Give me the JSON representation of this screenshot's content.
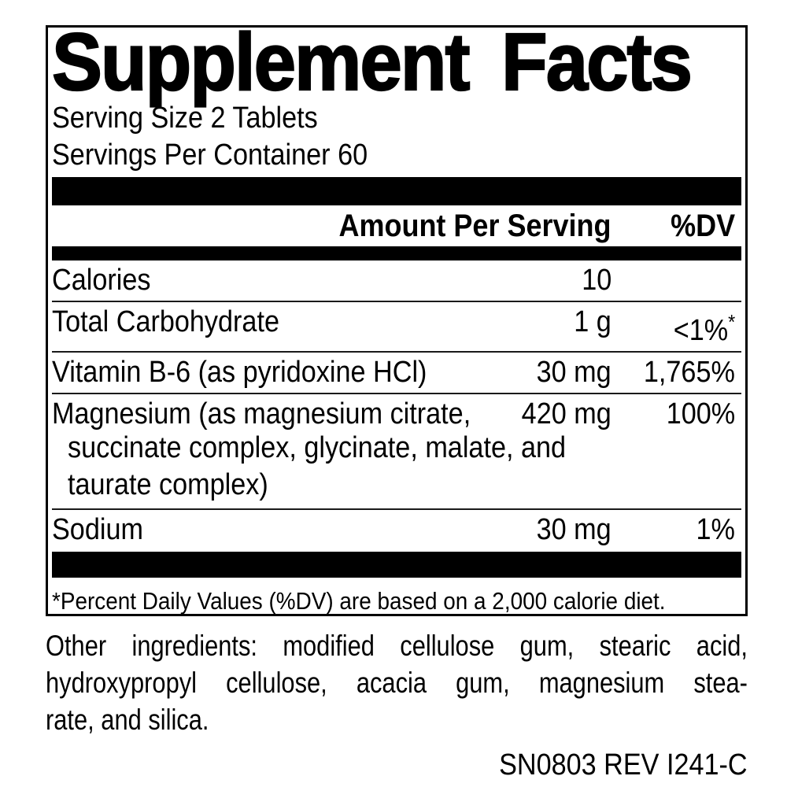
{
  "label": {
    "title": "Supplement Facts",
    "serving_size": "Serving Size 2 Tablets",
    "servings_per_container": "Servings Per Container 60",
    "header": {
      "amount": "Amount Per Serving",
      "dv": "%DV"
    },
    "rows": [
      {
        "name": "Calories",
        "amount": "10",
        "dv": ""
      },
      {
        "name": "Total Carbohydrate",
        "amount": "1 g",
        "dv": "<1%",
        "dv_note": "*"
      },
      {
        "name": "Vitamin B-6 (as pyridoxine HCl)",
        "amount": "30 mg",
        "dv": "1,765%"
      },
      {
        "name_line1": "Magnesium (as magnesium citrate,",
        "name_line2": "succinate complex, glycinate, malate, and",
        "name_line3": "taurate complex)",
        "amount": "420 mg",
        "dv": "100%"
      },
      {
        "name": "Sodium",
        "amount": "30 mg",
        "dv": "1%"
      }
    ],
    "footnote": "*Percent Daily Values (%DV) are based on a 2,000 calorie diet."
  },
  "other_ingredients": {
    "lines": [
      "Other ingredients: modified cellulose gum, stearic acid,",
      "hydroxypropyl cellulose, acacia gum, magnesium stea-",
      "rate, and silica."
    ]
  },
  "footer_code": "SN0803 REV I241-C",
  "colors": {
    "ink": "#000000",
    "background": "#ffffff"
  }
}
